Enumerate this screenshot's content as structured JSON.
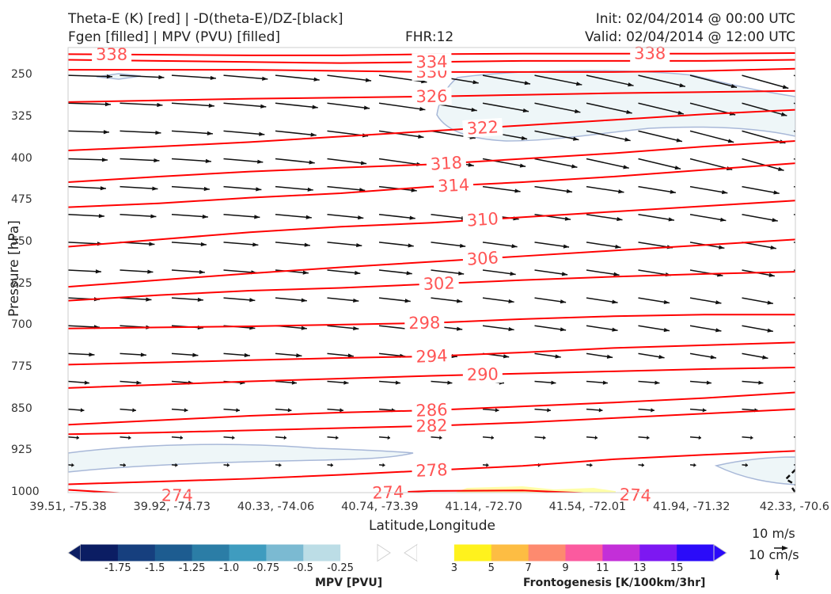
{
  "header": {
    "title_line1_left": "Theta-E (K) [red] | -D(theta-E)/DZ-[black]",
    "title_line2_left": "Fgen [filled] | MPV (PVU) [filled]",
    "fhr": "FHR:12",
    "init": "Init: 02/04/2014 @ 00:00 UTC",
    "valid": "Valid: 02/04/2014 @ 12:00 UTC"
  },
  "chart_data": {
    "type": "cross-section",
    "xlabel": "Latitude,Longitude",
    "ylabel": "Pressure [hPa]",
    "y_ticks": [
      "250",
      "325",
      "400",
      "475",
      "550",
      "625",
      "700",
      "775",
      "850",
      "925",
      "1000"
    ],
    "x_ticks": [
      "39.51, -75.38",
      "39.92, -74.73",
      "40.33, -74.06",
      "40.74, -73.39",
      "41.14, -72.70",
      "41.54, -72.01",
      "41.94, -71.32",
      "42.33, -70.6"
    ],
    "ylim": [
      1000,
      200
    ],
    "theta_e_isolines": [
      {
        "label": "274",
        "p": [
          995,
          1005,
          1006,
          1003,
          997,
          996,
          1003,
          1010,
          1010
        ]
      },
      {
        "label": "278",
        "p": [
          985,
          980,
          975,
          968,
          960,
          952,
          940,
          932,
          925
        ]
      },
      {
        "label": "282",
        "p": [
          895,
          892,
          888,
          884,
          880,
          874,
          866,
          858,
          850
        ]
      },
      {
        "label": "286",
        "p": [
          878,
          870,
          862,
          856,
          852,
          845,
          838,
          830,
          820
        ]
      },
      {
        "label": "290",
        "p": [
          812,
          806,
          800,
          795,
          790,
          786,
          782,
          778,
          775
        ]
      },
      {
        "label": "294",
        "p": [
          770,
          766,
          762,
          758,
          755,
          748,
          740,
          735,
          730
        ]
      },
      {
        "label": "298",
        "p": [
          705,
          703,
          701,
          698,
          695,
          688,
          683,
          680,
          680
        ]
      },
      {
        "label": "302",
        "p": [
          655,
          645,
          637,
          632,
          625,
          618,
          612,
          607,
          603
        ]
      },
      {
        "label": "306",
        "p": [
          630,
          618,
          606,
          595,
          585,
          575,
          565,
          555,
          545
        ]
      },
      {
        "label": "310",
        "p": [
          558,
          545,
          532,
          522,
          515,
          505,
          495,
          485,
          475
        ]
      },
      {
        "label": "314",
        "p": [
          487,
          480,
          470,
          462,
          450,
          442,
          432,
          420,
          408
        ]
      },
      {
        "label": "318",
        "p": [
          442,
          432,
          423,
          416,
          410,
          400,
          390,
          378,
          368
        ]
      },
      {
        "label": "322",
        "p": [
          385,
          378,
          370,
          360,
          350,
          340,
          330,
          320,
          312
        ]
      },
      {
        "label": "326",
        "p": [
          298,
          295,
          292,
          290,
          288,
          285,
          282,
          280,
          278
        ]
      },
      {
        "label": "330",
        "p": [
          240,
          240,
          240,
          242,
          244,
          244,
          244,
          242,
          238
        ]
      },
      {
        "label": "334",
        "p": [
          222,
          224,
          226,
          228,
          226,
          224,
          224,
          224,
          222
        ]
      },
      {
        "label": "338",
        "p": [
          212,
          213,
          214,
          214,
          212,
          211,
          211,
          211,
          210
        ]
      }
    ],
    "mpv_colorbar": {
      "label": "MPV [PVU]",
      "ticks": [
        "-1.75",
        "-1.5",
        "-1.25",
        "-1.0",
        "-0.75",
        "-0.5",
        "-0.25"
      ],
      "colors": [
        "#0b1d63",
        "#163f7e",
        "#1d5c90",
        "#2b7da6",
        "#3f9cbf",
        "#7bbad2",
        "#bcdde6",
        "#ffffff"
      ]
    },
    "fgen_colorbar": {
      "label": "Frontogenesis [K/100km/3hr]",
      "ticks": [
        "3",
        "5",
        "7",
        "9",
        "11",
        "13",
        "15"
      ],
      "colors": [
        "#ffffff",
        "#fff21d",
        "#fdbd43",
        "#fd8a6f",
        "#fb5a9f",
        "#c32fd8",
        "#7d18f2",
        "#2b0bf9"
      ]
    },
    "vector_key": {
      "line1": "10 m/s",
      "line2": "10 cm/s"
    }
  },
  "colors": {
    "theta_e": "#ff0000",
    "theta_e_label": "#ff5555",
    "vectors": "#111111",
    "mpv_fill": "#eef6f8",
    "mpv_edge": "#a8b8d8",
    "fgen_fill": "#ffffa8"
  }
}
